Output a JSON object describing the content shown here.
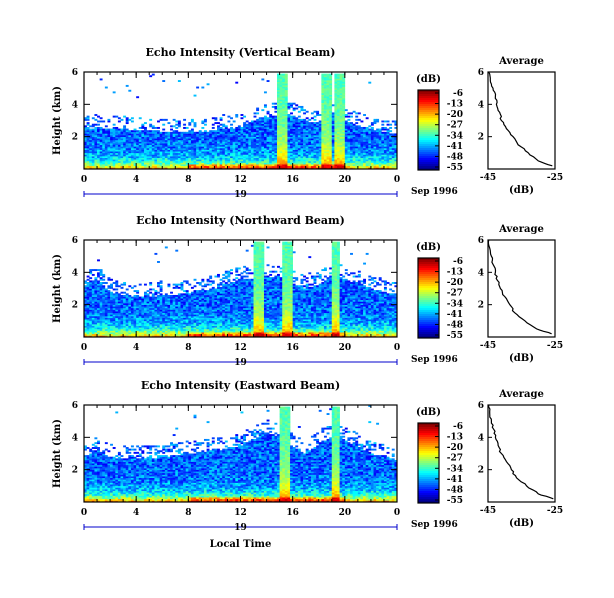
{
  "chart_data": [
    {
      "type": "heatmap",
      "title": "Echo Intensity (Vertical Beam)",
      "ylabel": "Height (km)",
      "xticks": [
        "0",
        "4",
        "8",
        "12",
        "16",
        "20",
        "0"
      ],
      "xlim": [
        0,
        24
      ],
      "yticks": [
        "2",
        "4",
        "6"
      ],
      "ylim": [
        0,
        6
      ],
      "date_day": "19",
      "date_label": "Sep 1996",
      "colorbar": {
        "unit": "(dB)",
        "ticks": [
          "-6",
          "-13",
          "-20",
          "-27",
          "-34",
          "-41",
          "-48",
          "-55"
        ],
        "range": [
          -55,
          -6
        ]
      },
      "top_hours": [
        0,
        1,
        2,
        3,
        4,
        5,
        6,
        7,
        8,
        9,
        10,
        11,
        12,
        13,
        14,
        15,
        16,
        17,
        18,
        19,
        20,
        21,
        22,
        23,
        24
      ],
      "top_km": [
        2.4,
        2.6,
        2.5,
        2.5,
        2.4,
        2.4,
        2.3,
        2.3,
        2.3,
        2.3,
        2.4,
        2.5,
        2.6,
        3.0,
        3.2,
        3.4,
        3.3,
        3.0,
        2.8,
        3.2,
        3.0,
        2.7,
        2.5,
        2.3,
        2.2
      ],
      "average": {
        "title": "Average",
        "xlabel": "(dB)",
        "xticks": [
          "-45",
          "-25"
        ],
        "xlim": [
          -45,
          -25
        ],
        "yticks": [
          "2",
          "4",
          "6"
        ],
        "ylim": [
          0,
          6
        ],
        "height_km": [
          0.2,
          0.5,
          1.0,
          1.5,
          2.0,
          2.5,
          3.0,
          3.5,
          4.0,
          4.5,
          5.0,
          5.5,
          6.0
        ],
        "db": [
          -25.8,
          -30.0,
          -33.0,
          -36.0,
          -37.5,
          -39.5,
          -41.0,
          -41.5,
          -42.5,
          -42.8,
          -43.5,
          -44.3,
          -44.8
        ]
      }
    },
    {
      "type": "heatmap",
      "title": "Echo Intensity (Northward Beam)",
      "ylabel": "Height (km)",
      "xticks": [
        "0",
        "4",
        "8",
        "12",
        "16",
        "20",
        "0"
      ],
      "xlim": [
        0,
        24
      ],
      "yticks": [
        "2",
        "4",
        "6"
      ],
      "ylim": [
        0,
        6
      ],
      "date_day": "19",
      "date_label": "Sep 1996",
      "colorbar": {
        "unit": "(dB)",
        "ticks": [
          "-6",
          "-13",
          "-20",
          "-27",
          "-34",
          "-41",
          "-48",
          "-55"
        ],
        "range": [
          -55,
          -6
        ]
      },
      "top_hours": [
        0,
        1,
        2,
        3,
        4,
        5,
        6,
        7,
        8,
        9,
        10,
        11,
        12,
        13,
        14,
        15,
        16,
        17,
        18,
        19,
        20,
        21,
        22,
        23,
        24
      ],
      "top_km": [
        3.2,
        3.6,
        2.8,
        2.6,
        2.5,
        2.5,
        2.6,
        2.6,
        2.7,
        2.9,
        3.0,
        3.3,
        3.6,
        3.6,
        3.7,
        3.8,
        3.3,
        3.0,
        3.2,
        3.8,
        3.6,
        3.3,
        3.0,
        2.8,
        2.6
      ],
      "average": {
        "title": "Average",
        "xlabel": "(dB)",
        "xticks": [
          "-45",
          "-25"
        ],
        "xlim": [
          -45,
          -25
        ],
        "yticks": [
          "2",
          "4",
          "6"
        ],
        "ylim": [
          0,
          6
        ],
        "height_km": [
          0.2,
          0.5,
          1.0,
          1.5,
          2.0,
          2.5,
          3.0,
          3.5,
          4.0,
          4.5,
          5.0,
          5.5,
          6.0
        ],
        "db": [
          -26.0,
          -30.5,
          -34.0,
          -37.0,
          -38.5,
          -40.0,
          -41.3,
          -42.2,
          -42.8,
          -43.5,
          -44.0,
          -44.5,
          -44.8
        ]
      }
    },
    {
      "type": "heatmap",
      "title": "Echo Intensity (Eastward Beam)",
      "ylabel": "Height (km)",
      "xticks": [
        "0",
        "4",
        "8",
        "12",
        "16",
        "20",
        "0"
      ],
      "xlim": [
        0,
        24
      ],
      "yticks": [
        "2",
        "4",
        "6"
      ],
      "ylim": [
        0,
        6
      ],
      "date_day": "19",
      "date_label": "Sep 1996",
      "xlabel": "Local Time",
      "colorbar": {
        "unit": "(dB)",
        "ticks": [
          "-6",
          "-13",
          "-20",
          "-27",
          "-34",
          "-41",
          "-48",
          "-55"
        ],
        "range": [
          -55,
          -6
        ]
      },
      "top_hours": [
        0,
        1,
        2,
        3,
        4,
        5,
        6,
        7,
        8,
        9,
        10,
        11,
        12,
        13,
        14,
        15,
        16,
        17,
        18,
        19,
        20,
        21,
        22,
        23,
        24
      ],
      "top_km": [
        2.8,
        3.2,
        2.8,
        2.7,
        2.7,
        2.7,
        2.8,
        2.9,
        3.0,
        3.1,
        3.2,
        3.3,
        3.5,
        3.9,
        4.3,
        4.0,
        3.4,
        3.0,
        3.6,
        4.1,
        3.9,
        3.4,
        3.0,
        2.8,
        2.6
      ],
      "average": {
        "title": "Average",
        "xlabel": "(dB)",
        "xticks": [
          "-45",
          "-25"
        ],
        "xlim": [
          -45,
          -25
        ],
        "yticks": [
          "2",
          "4",
          "6"
        ],
        "ylim": [
          0,
          6
        ],
        "height_km": [
          0.2,
          0.5,
          1.0,
          1.5,
          2.0,
          2.5,
          3.0,
          3.5,
          4.0,
          4.5,
          5.0,
          5.5,
          6.0
        ],
        "db": [
          -25.5,
          -30.0,
          -33.5,
          -36.5,
          -38.0,
          -39.5,
          -41.0,
          -42.0,
          -42.8,
          -43.3,
          -44.0,
          -44.5,
          -44.8
        ]
      }
    }
  ]
}
